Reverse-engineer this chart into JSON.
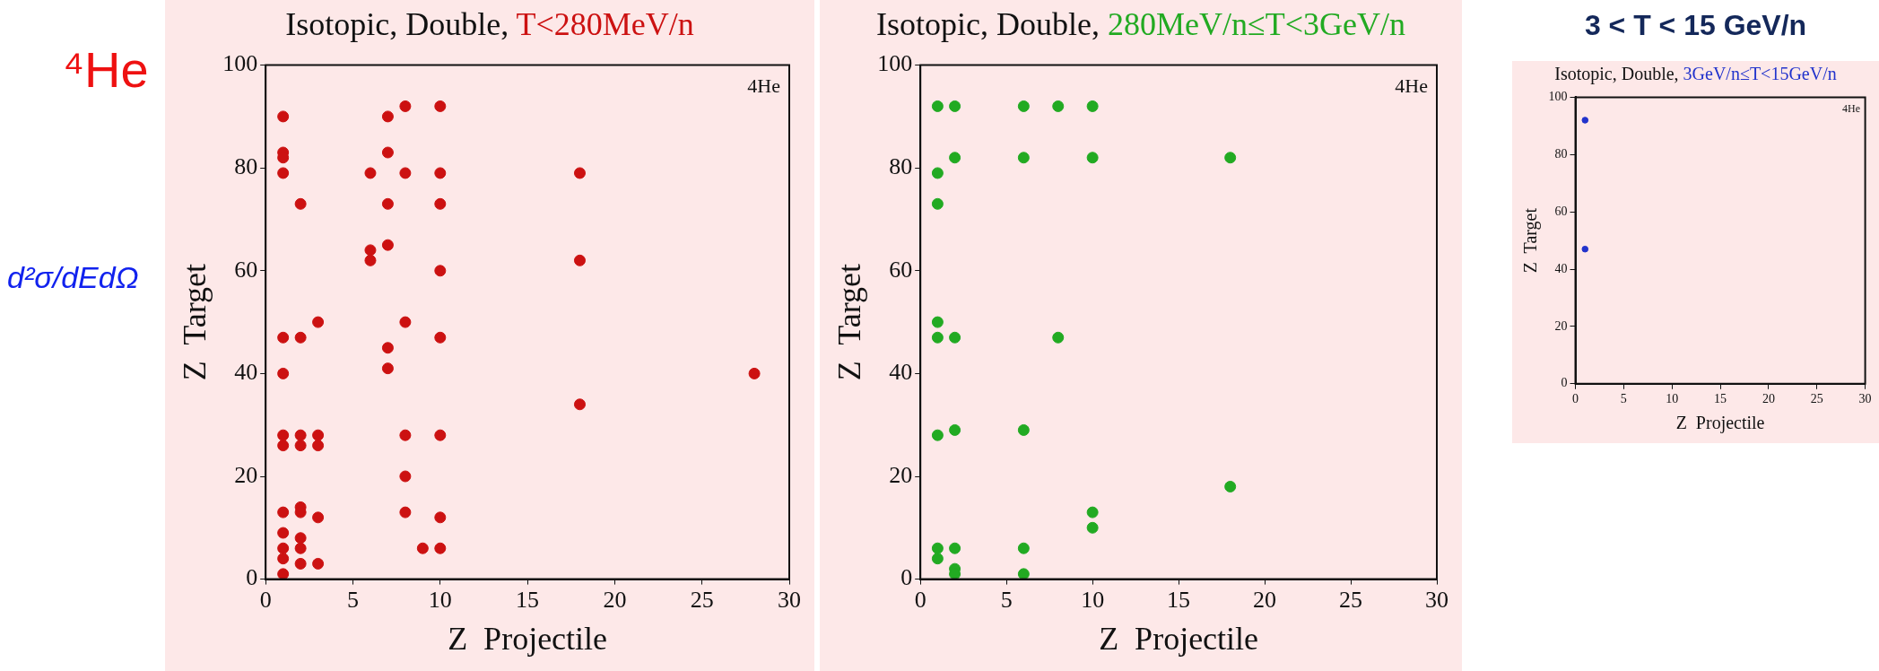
{
  "chart_data": [
    {
      "type": "other",
      "annotations": [
        "⁴He",
        "d²σ/dEdΩ"
      ]
    },
    {
      "type": "scatter",
      "title": "Isotopic, Double, T<280MeV/n",
      "xlabel": "Z  Projectile",
      "ylabel": "Z  Target",
      "annotations": [
        "4He"
      ],
      "marker": "circle",
      "color": "#cc1111",
      "xlim": [
        0,
        30
      ],
      "xticks": [
        0,
        5,
        10,
        15,
        20,
        25,
        30
      ],
      "ylim": [
        0,
        100
      ],
      "yticks": [
        0,
        20,
        40,
        60,
        80,
        100
      ],
      "x": [
        1,
        7,
        8,
        10,
        1,
        1,
        7,
        1,
        6,
        8,
        10,
        18,
        2,
        7,
        10,
        6,
        6,
        7,
        18,
        10,
        3,
        8,
        1,
        2,
        10,
        7,
        7,
        1,
        28,
        18,
        1,
        1,
        2,
        2,
        3,
        3,
        8,
        10,
        8,
        1,
        2,
        2,
        3,
        8,
        10,
        1,
        2,
        1,
        2,
        9,
        10,
        1,
        2,
        3,
        1
      ],
      "values": [
        90,
        90,
        92,
        92,
        83,
        82,
        83,
        79,
        79,
        79,
        79,
        79,
        73,
        73,
        73,
        64,
        62,
        65,
        62,
        60,
        50,
        50,
        47,
        47,
        47,
        45,
        41,
        40,
        40,
        34,
        28,
        26,
        28,
        26,
        28,
        26,
        28,
        28,
        20,
        13,
        14,
        13,
        12,
        13,
        12,
        9,
        8,
        6,
        6,
        6,
        6,
        4,
        3,
        3,
        1
      ]
    },
    {
      "type": "scatter",
      "title": "Isotopic, Double, 280MeV/n≤T<3GeV/n",
      "xlabel": "Z  Projectile",
      "ylabel": "Z  Target",
      "annotations": [
        "4He"
      ],
      "marker": "circle",
      "color": "#22aa22",
      "xlim": [
        0,
        30
      ],
      "xticks": [
        0,
        5,
        10,
        15,
        20,
        25,
        30
      ],
      "ylim": [
        0,
        100
      ],
      "yticks": [
        0,
        20,
        40,
        60,
        80,
        100
      ],
      "x": [
        1,
        2,
        6,
        8,
        10,
        2,
        6,
        10,
        18,
        1,
        1,
        1,
        1,
        2,
        8,
        1,
        2,
        6,
        18,
        10,
        10,
        1,
        1,
        2,
        6,
        2,
        2,
        6
      ],
      "values": [
        92,
        92,
        92,
        92,
        92,
        82,
        82,
        82,
        82,
        79,
        73,
        50,
        47,
        47,
        47,
        28,
        29,
        29,
        18,
        13,
        10,
        6,
        4,
        6,
        6,
        2,
        1,
        1
      ]
    },
    {
      "type": "scatter",
      "subtitle": "3 < T < 15 GeV/n",
      "title": "Isotopic, Double, 3GeV/n≤T<15GeV/n",
      "xlabel": "Z  Projectile",
      "ylabel": "Z  Target",
      "annotations": [
        "4He"
      ],
      "marker": "circle",
      "color": "#2233cc",
      "xlim": [
        0,
        30
      ],
      "xticks": [
        0,
        5,
        10,
        15,
        20,
        25,
        30
      ],
      "ylim": [
        0,
        100
      ],
      "yticks": [
        0,
        20,
        40,
        60,
        80,
        100
      ],
      "x": [
        1,
        1
      ],
      "values": [
        92,
        47
      ]
    }
  ]
}
